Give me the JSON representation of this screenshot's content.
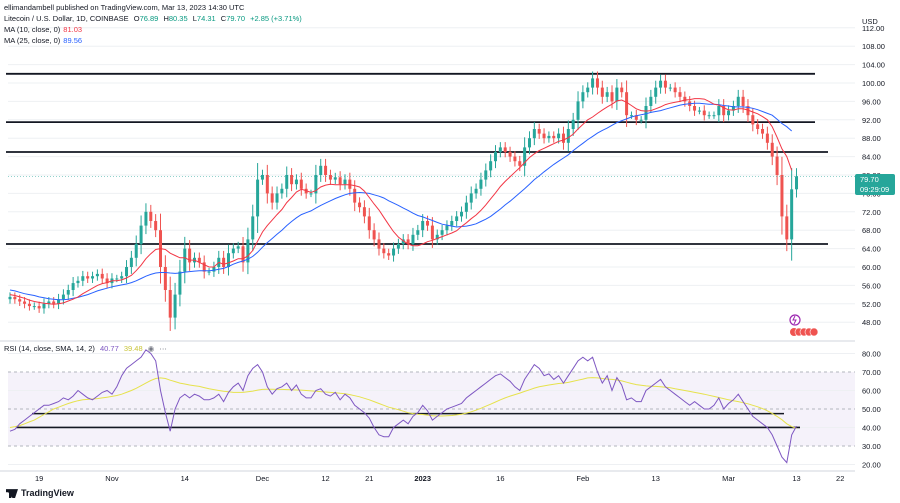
{
  "header": {
    "published": "ellimandambell published on TradingView.com, Mar 13, 2023 14:30 UTC",
    "symbol": "Litecoin / U.S. Dollar, 1D, COINBASE",
    "o_label": "O",
    "o": "76.89",
    "h_label": "H",
    "h": "80.35",
    "l_label": "L",
    "l": "74.31",
    "c_label": "C",
    "c": "79.70",
    "change": "+2.85 (+3.71%)",
    "ma10": "MA (10, close, 0)",
    "ma10_val": "81.03",
    "ma25": "MA (25, close, 0)",
    "ma25_val": "89.56",
    "rsi": "RSI (14, close, SMA, 14, 2)",
    "rsi_val": "40.77",
    "rsi_sma_val": "39.48"
  },
  "price_label": "79.70",
  "countdown": "09:29:09",
  "currency": "USD",
  "footer": "TradingView",
  "colors": {
    "up": "#26a69a",
    "down": "#ef5350",
    "ma10": "#f23645",
    "ma25": "#2962ff",
    "rsi": "#7e57c2",
    "rsi_sma": "#e6e24c",
    "grid": "#eef0f3"
  },
  "chart_data": {
    "type": "candlestick",
    "y_ticks": [
      "112.00",
      "108.00",
      "104.00",
      "100.00",
      "96.00",
      "92.00",
      "88.00",
      "84.00",
      "80.00",
      "76.00",
      "72.00",
      "68.00",
      "64.00",
      "60.00",
      "56.00",
      "52.00",
      "48.00"
    ],
    "x_ticks": [
      "19",
      "Nov",
      "14",
      "Dec",
      "12",
      "21",
      "2023",
      "16",
      "Feb",
      "13",
      "Mar",
      "13",
      "22"
    ],
    "rsi_ticks": [
      "80.00",
      "70.00",
      "60.00",
      "50.00",
      "40.00",
      "30.00",
      "20.00"
    ],
    "ylim": [
      45,
      115
    ],
    "rsi_ylim": [
      17,
      83
    ],
    "horizontal_levels": [
      102,
      91.5,
      85,
      65
    ],
    "rsi_levels": [
      47.5,
      40
    ],
    "close": [
      53.5,
      53,
      52.5,
      52,
      51.5,
      51.5,
      51,
      52,
      52.5,
      52,
      53,
      54,
      55,
      56.5,
      57,
      58,
      57.5,
      58,
      58.5,
      57.5,
      56.5,
      57.5,
      57.5,
      58,
      60,
      62,
      65,
      69,
      72,
      70,
      68,
      60,
      55,
      49,
      54,
      59,
      64,
      61,
      62,
      61,
      59,
      59,
      60,
      62,
      60,
      63,
      64,
      64.5,
      61,
      66,
      71,
      79,
      80,
      76,
      74,
      76,
      77,
      80,
      78,
      79,
      77,
      76,
      76,
      80,
      82,
      80,
      79,
      79.5,
      78,
      79,
      77,
      74,
      73,
      71,
      68,
      66,
      64,
      63,
      62.5,
      64,
      65,
      66,
      65,
      67,
      68,
      70,
      69,
      66,
      67,
      68,
      69,
      70,
      71,
      72,
      74,
      76,
      77,
      79,
      81,
      83,
      85,
      86,
      85,
      84,
      83,
      82,
      86,
      88,
      90,
      89,
      88,
      88.5,
      88,
      89,
      87,
      90,
      92,
      96,
      98,
      99,
      101,
      99,
      97,
      98,
      96,
      99,
      98,
      93,
      93,
      92,
      92,
      95,
      97,
      99,
      100.5,
      99,
      99,
      98,
      97,
      96,
      95,
      94,
      94,
      93,
      93,
      93,
      95,
      93,
      94,
      95,
      97,
      95,
      93,
      91,
      90,
      89,
      87,
      84,
      80,
      71,
      66,
      76.89,
      79.7
    ],
    "ma10": [
      54,
      53.8,
      53.5,
      53.2,
      52.8,
      52.5,
      52.3,
      52.1,
      52,
      51.9,
      52,
      52.2,
      52.6,
      53,
      53.5,
      54.2,
      54.8,
      55.4,
      56,
      56.4,
      56.6,
      57,
      57,
      57.2,
      57.6,
      58.2,
      59.2,
      60.4,
      61.8,
      62.9,
      63.8,
      64,
      63.8,
      63,
      62.5,
      62,
      62,
      61.5,
      61.5,
      61,
      60.5,
      60,
      60,
      61,
      60.6,
      60.9,
      61.3,
      61.8,
      61.8,
      62.4,
      63.6,
      65.6,
      67.6,
      69,
      70.2,
      71.4,
      72.5,
      74,
      75.1,
      76.3,
      76.9,
      76.6,
      76.2,
      76.6,
      77.4,
      77.8,
      78,
      77.9,
      77.9,
      77.9,
      77.9,
      77.7,
      77.4,
      76.5,
      75.1,
      73.7,
      72.4,
      70.8,
      69.2,
      67.7,
      66.5,
      65.7,
      65,
      64.6,
      64.6,
      65,
      65.5,
      65.8,
      66.2,
      66.6,
      67,
      67.4,
      67.9,
      68.8,
      69.6,
      70.5,
      71.3,
      72.3,
      73.5,
      74.8,
      76.1,
      77.5,
      78.6,
      79.6,
      80.6,
      81.6,
      82.7,
      83.8,
      84.6,
      85.3,
      85.8,
      86.3,
      86.8,
      87.3,
      87.6,
      88.1,
      88.9,
      90,
      91,
      92,
      92.6,
      93.4,
      94.1,
      94.8,
      95.4,
      96.1,
      96.3,
      95.8,
      95.1,
      94.4,
      94,
      93.9,
      94,
      94.4,
      94.8,
      95.3,
      95.6,
      95.8,
      96,
      96.3,
      96.4,
      96.6,
      96.6,
      96.5,
      96,
      95.4,
      95.2,
      94.6,
      94.2,
      94.1,
      94.4,
      94.4,
      94.1,
      93.7,
      93.3,
      92.7,
      92,
      90.5,
      88.2,
      85.7,
      84,
      81.03
    ],
    "ma25": [
      55,
      54.8,
      54.5,
      54.2,
      54,
      53.8,
      53.5,
      53.3,
      53.1,
      53,
      52.9,
      52.9,
      53,
      53.2,
      53.4,
      53.7,
      54,
      54.4,
      54.8,
      55.1,
      55.4,
      55.7,
      55.9,
      56.1,
      56.3,
      56.6,
      57,
      57.5,
      58,
      58.4,
      58.7,
      58.8,
      58.8,
      58.7,
      58.6,
      58.7,
      58.9,
      59,
      59.1,
      59.2,
      59.2,
      59.2,
      59.3,
      59.5,
      59.7,
      60.1,
      60.6,
      61,
      61.3,
      61.7,
      62.3,
      63.2,
      64.3,
      65.3,
      66.2,
      67.1,
      68,
      69,
      69.9,
      70.7,
      71.4,
      71.8,
      72.2,
      72.8,
      73.4,
      73.9,
      74.4,
      74.9,
      75.3,
      75.7,
      76,
      76.1,
      76.2,
      76.1,
      76,
      75.7,
      75.4,
      75,
      74.4,
      73.9,
      73.4,
      72.8,
      72.3,
      71.7,
      71.2,
      70.9,
      70.5,
      70.1,
      69.7,
      69.3,
      69.1,
      68.9,
      68.7,
      68.8,
      68.9,
      69.1,
      69.4,
      69.9,
      70.4,
      71,
      71.8,
      72.6,
      73.5,
      74.3,
      75.2,
      76.1,
      77,
      78,
      79,
      79.8,
      80.7,
      81.5,
      82.3,
      83,
      83.7,
      84.4,
      85.3,
      86.1,
      86.9,
      87.7,
      88.4,
      89.1,
      89.7,
      90.2,
      90.8,
      91.4,
      91.8,
      92.2,
      92.6,
      92.9,
      93.1,
      93.3,
      93.6,
      93.8,
      94,
      94.3,
      94.6,
      94.9,
      95.2,
      95.4,
      95.5,
      95.6,
      95.6,
      95.5,
      95.4,
      95.4,
      95.3,
      95.1,
      95,
      94.8,
      94.8,
      94.8,
      94.7,
      94.5,
      94.2,
      93.8,
      93.4,
      93,
      92.1,
      91.2,
      90.5,
      89.56
    ],
    "rsi": [
      38,
      39,
      42,
      44,
      46,
      48,
      50,
      52,
      52,
      53,
      54,
      56,
      55,
      57,
      60,
      58,
      56,
      55,
      57,
      59,
      60,
      58,
      62,
      68,
      72,
      74,
      76,
      78,
      82,
      80,
      76,
      60,
      48,
      38,
      50,
      56,
      58,
      56,
      58,
      57,
      55,
      55,
      56,
      58,
      54,
      59,
      62,
      64,
      60,
      68,
      72,
      74,
      70,
      62,
      58,
      61,
      62,
      64,
      60,
      63,
      58,
      56,
      56,
      60,
      61,
      58,
      57,
      59,
      55,
      58,
      56,
      52,
      50,
      48,
      45,
      40,
      36,
      35,
      35,
      40,
      42,
      44,
      42,
      46,
      48,
      52,
      49,
      44,
      46,
      48,
      50,
      51,
      52,
      53,
      56,
      58,
      60,
      62,
      64,
      66,
      68,
      69,
      67,
      65,
      62,
      60,
      66,
      70,
      74,
      72,
      68,
      69,
      66,
      68,
      64,
      68,
      72,
      76,
      78,
      76,
      78,
      70,
      64,
      68,
      60,
      67,
      63,
      55,
      56,
      54,
      54,
      60,
      62,
      64,
      66,
      62,
      60,
      58,
      56,
      54,
      52,
      54,
      52,
      50,
      50,
      52,
      56,
      50,
      53,
      55,
      58,
      54,
      50,
      46,
      44,
      42,
      40,
      36,
      30,
      24,
      21,
      36,
      40.77
    ],
    "rsi_sma": [
      40,
      40.5,
      41,
      42,
      43,
      44,
      45.5,
      47,
      48.5,
      50,
      51,
      52,
      53,
      53.8,
      54.5,
      55,
      55.2,
      55.4,
      55.6,
      56,
      56.4,
      56.8,
      57.3,
      58,
      59,
      60,
      61.2,
      62.6,
      64,
      65.4,
      66.5,
      66.8,
      66.5,
      65.6,
      64.8,
      64,
      63.5,
      63,
      62.6,
      62.2,
      61.6,
      61,
      60.5,
      60,
      59.6,
      59.3,
      59,
      59,
      59,
      59.3,
      59.7,
      60.2,
      60.6,
      60.7,
      60.7,
      60.6,
      60.6,
      60.5,
      60.4,
      60.3,
      60.2,
      60,
      59.8,
      59.6,
      59.4,
      59.2,
      59,
      58.8,
      58.5,
      58.2,
      57.8,
      57.2,
      56.6,
      55.8,
      55,
      54,
      53,
      52,
      51,
      50.3,
      49.6,
      48.8,
      48,
      47.5,
      47.2,
      47,
      46.7,
      46.4,
      46.2,
      46.2,
      46.3,
      46.5,
      46.8,
      47.2,
      47.8,
      48.5,
      49.4,
      50.4,
      51.5,
      52.6,
      53.8,
      55,
      56,
      57,
      57.8,
      58.6,
      59.5,
      60.4,
      61.3,
      62,
      62.5,
      63,
      63.4,
      63.8,
      64,
      64.4,
      65,
      65.6,
      66.2,
      66.8,
      67,
      66.8,
      66.5,
      66.2,
      66,
      65.7,
      65.2,
      64.5,
      63.8,
      63.2,
      62.8,
      62.5,
      62.3,
      62.2,
      62,
      61.8,
      61.5,
      61,
      60.5,
      60,
      59.5,
      59,
      58.5,
      58,
      57.4,
      56.8,
      56.2,
      55.6,
      55,
      54.5,
      54,
      53.4,
      52.8,
      52,
      51.2,
      50.2,
      49,
      47.6,
      46,
      44.2,
      42,
      40.5,
      39.48
    ]
  }
}
